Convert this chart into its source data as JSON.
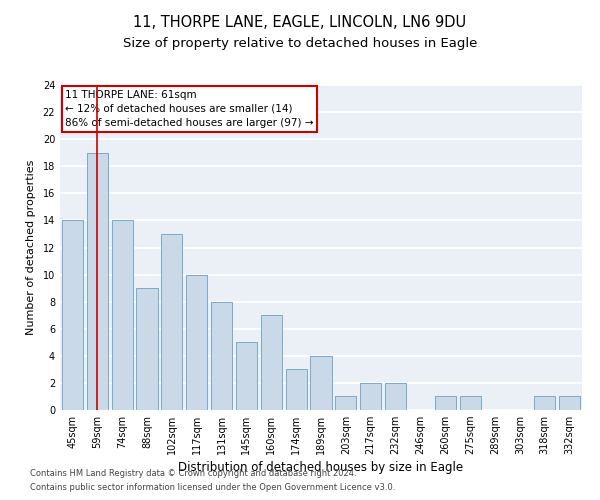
{
  "title1": "11, THORPE LANE, EAGLE, LINCOLN, LN6 9DU",
  "title2": "Size of property relative to detached houses in Eagle",
  "xlabel": "Distribution of detached houses by size in Eagle",
  "ylabel": "Number of detached properties",
  "categories": [
    "45sqm",
    "59sqm",
    "74sqm",
    "88sqm",
    "102sqm",
    "117sqm",
    "131sqm",
    "145sqm",
    "160sqm",
    "174sqm",
    "189sqm",
    "203sqm",
    "217sqm",
    "232sqm",
    "246sqm",
    "260sqm",
    "275sqm",
    "289sqm",
    "303sqm",
    "318sqm",
    "332sqm"
  ],
  "values": [
    14,
    19,
    14,
    9,
    13,
    10,
    8,
    5,
    7,
    3,
    4,
    1,
    2,
    2,
    0,
    1,
    1,
    0,
    0,
    1,
    1
  ],
  "bar_color": "#c9d9e8",
  "bar_edgecolor": "#7aaac8",
  "vline_x": 1,
  "vline_color": "#cc0000",
  "annotation_title": "11 THORPE LANE: 61sqm",
  "annotation_line1": "← 12% of detached houses are smaller (14)",
  "annotation_line2": "86% of semi-detached houses are larger (97) →",
  "annotation_box_facecolor": "#ffffff",
  "annotation_box_edgecolor": "#cc0000",
  "ylim": [
    0,
    24
  ],
  "yticks": [
    0,
    2,
    4,
    6,
    8,
    10,
    12,
    14,
    16,
    18,
    20,
    22,
    24
  ],
  "bar_linewidth": 0.7,
  "bar_width": 0.85,
  "footer1": "Contains HM Land Registry data © Crown copyright and database right 2024.",
  "footer2": "Contains public sector information licensed under the Open Government Licence v3.0.",
  "bg_color": "#eaf0f6",
  "grid_color": "#ffffff",
  "title1_fontsize": 10.5,
  "title2_fontsize": 9.5,
  "xlabel_fontsize": 8.5,
  "ylabel_fontsize": 8,
  "tick_fontsize": 7,
  "annotation_fontsize": 7.5,
  "footer_fontsize": 6
}
